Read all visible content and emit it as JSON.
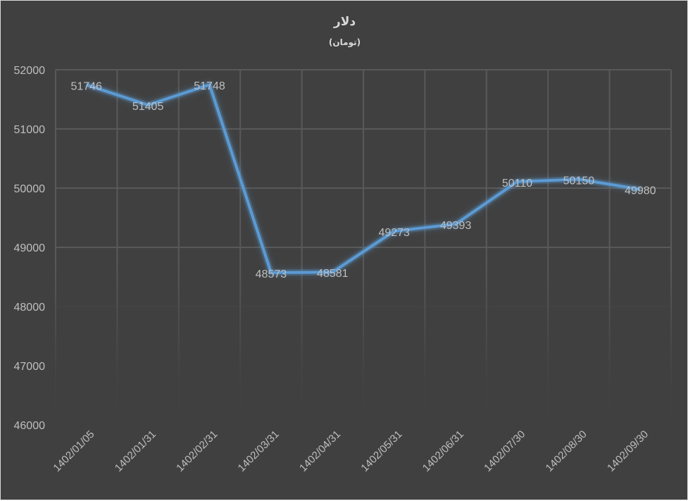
{
  "chart_data": {
    "type": "line",
    "title": "دلار",
    "subtitle": "(تومان)",
    "xlabel": "",
    "ylabel": "",
    "categories": [
      "1402/01/05",
      "1402/01/31",
      "1402/02/31",
      "1402/03/31",
      "1402/04/31",
      "1402/05/31",
      "1402/06/31",
      "1402/07/30",
      "1402/08/30",
      "1402/09/30"
    ],
    "series": [
      {
        "name": "دلار",
        "values": [
          51746,
          51405,
          51748,
          48573,
          48581,
          49273,
          49393,
          50110,
          50150,
          49980
        ],
        "color": "#5b9bd5"
      }
    ],
    "ylim": [
      46000,
      52000
    ],
    "yticks": [
      46000,
      47000,
      48000,
      49000,
      50000,
      51000,
      52000
    ],
    "grid": true,
    "legend": "none",
    "data_labels": true
  },
  "colors": {
    "background": "#404040",
    "line": "#5b9bd5",
    "grid": "#595959",
    "text": "#bfbfbf",
    "title": "#d9d9d9"
  }
}
